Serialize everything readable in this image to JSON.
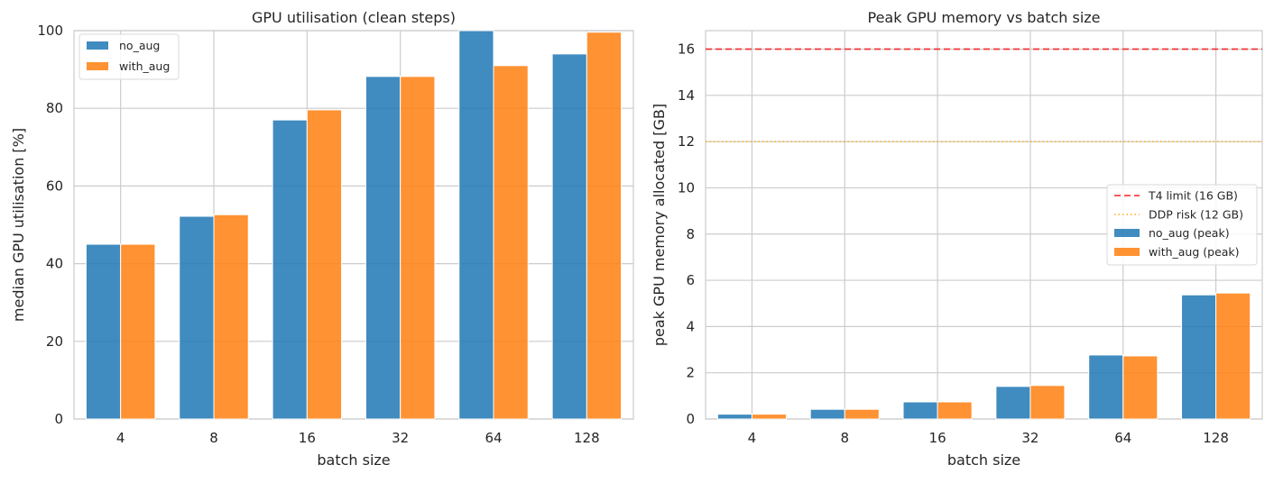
{
  "chart_data": [
    {
      "type": "bar",
      "title": "GPU utilisation (clean steps)",
      "xlabel": "batch size",
      "ylabel": "median GPU utilisation  [%]",
      "categories": [
        "4",
        "8",
        "16",
        "32",
        "64",
        "128"
      ],
      "series": [
        {
          "name": "no_aug",
          "color": "#1f77b4",
          "values": [
            45.0,
            52.2,
            77.0,
            88.2,
            100.0,
            94.0
          ]
        },
        {
          "name": "with_aug",
          "color": "#ff7f0e",
          "values": [
            45.0,
            52.6,
            79.6,
            88.2,
            91.0,
            99.6
          ]
        }
      ],
      "ylim": [
        0,
        100
      ],
      "yticks": [
        0,
        20,
        40,
        60,
        80,
        100
      ],
      "grid": true,
      "legend": "upper-left"
    },
    {
      "type": "bar",
      "title": "Peak GPU memory vs batch size",
      "xlabel": "batch size",
      "ylabel": "peak GPU memory allocated  [GB]",
      "categories": [
        "4",
        "8",
        "16",
        "32",
        "64",
        "128"
      ],
      "series": [
        {
          "name": "no_aug (peak)",
          "color": "#1f77b4",
          "values": [
            0.21,
            0.42,
            0.74,
            1.41,
            2.77,
            5.37
          ]
        },
        {
          "name": "with_aug (peak)",
          "color": "#ff7f0e",
          "values": [
            0.21,
            0.42,
            0.74,
            1.45,
            2.73,
            5.45
          ]
        }
      ],
      "reference_lines": [
        {
          "name": "T4 limit (16 GB)",
          "value": 16,
          "color": "#ff0000",
          "style": "dashed"
        },
        {
          "name": "DDP risk (12 GB)",
          "value": 12,
          "color": "#ffa500",
          "style": "dotted"
        }
      ],
      "ylim": [
        0,
        16.8
      ],
      "yticks": [
        0,
        2,
        4,
        6,
        8,
        10,
        12,
        14,
        16
      ],
      "grid": true,
      "legend": "center-right"
    }
  ]
}
